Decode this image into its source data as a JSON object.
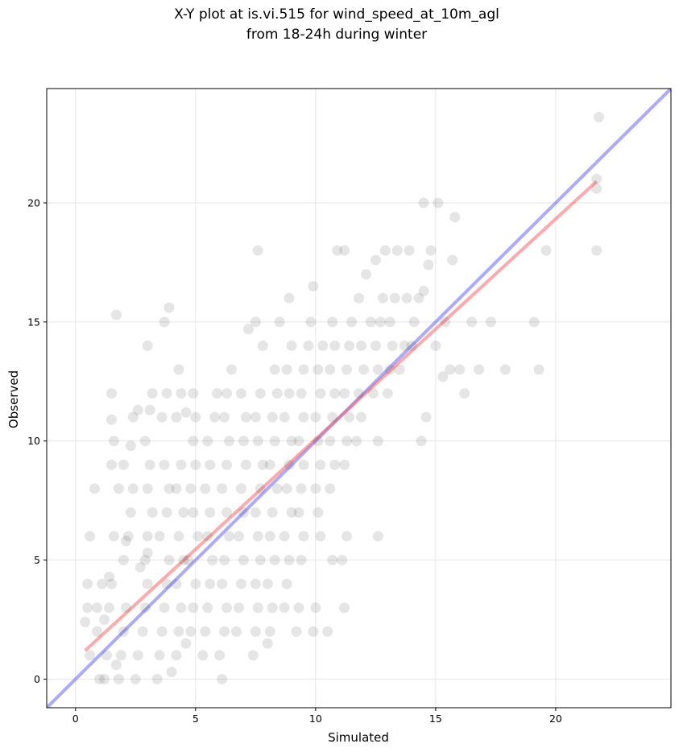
{
  "chart_data": {
    "type": "scatter",
    "title_line1": "X-Y plot at is.vi.515 for wind_speed_at_10m_agl",
    "title_line2": "from 18-24h during winter",
    "xlabel": "Simulated",
    "ylabel": "Observed",
    "xlim": [
      -1.2,
      24.8
    ],
    "ylim": [
      -1.2,
      24.8
    ],
    "xticks": [
      0,
      5,
      10,
      15,
      20
    ],
    "yticks": [
      0,
      5,
      10,
      15,
      20
    ],
    "grid": true,
    "colors": {
      "points": "#333333",
      "one_to_one": "#5555ff",
      "fit": "#ff5555"
    },
    "one_to_one_line": [
      [
        -1.2,
        -1.2
      ],
      [
        24.8,
        24.8
      ]
    ],
    "fit_line": [
      [
        0.4,
        1.2
      ],
      [
        21.7,
        20.9
      ]
    ],
    "points": [
      [
        0.4,
        2.4
      ],
      [
        0.5,
        3
      ],
      [
        0.6,
        6
      ],
      [
        0.5,
        4
      ],
      [
        0.6,
        1
      ],
      [
        0.8,
        8
      ],
      [
        0.9,
        2
      ],
      [
        1,
        0
      ],
      [
        1.2,
        0
      ],
      [
        1.3,
        1
      ],
      [
        0.9,
        3
      ],
      [
        1.1,
        4
      ],
      [
        1.2,
        2.5
      ],
      [
        1.4,
        3
      ],
      [
        1.5,
        4
      ],
      [
        1.6,
        6
      ],
      [
        1.4,
        4.3
      ],
      [
        1.5,
        9
      ],
      [
        1.6,
        10
      ],
      [
        1.5,
        10.9
      ],
      [
        1.5,
        12
      ],
      [
        1.7,
        0.6
      ],
      [
        1.8,
        0
      ],
      [
        1.9,
        1
      ],
      [
        2,
        2
      ],
      [
        2.1,
        3
      ],
      [
        1.8,
        8
      ],
      [
        1.7,
        15.3
      ],
      [
        2,
        9
      ],
      [
        2,
        5
      ],
      [
        2.1,
        5.8
      ],
      [
        2.2,
        6
      ],
      [
        2.3,
        7
      ],
      [
        2.4,
        8
      ],
      [
        2.3,
        9.8
      ],
      [
        2.4,
        11
      ],
      [
        2.6,
        11.3
      ],
      [
        2.5,
        0
      ],
      [
        2.6,
        1
      ],
      [
        2.8,
        2
      ],
      [
        2.9,
        3
      ],
      [
        3,
        4
      ],
      [
        2.7,
        4.7
      ],
      [
        2.9,
        5
      ],
      [
        3,
        5.3
      ],
      [
        3,
        6
      ],
      [
        3.2,
        7
      ],
      [
        3,
        8
      ],
      [
        3.1,
        9
      ],
      [
        2.9,
        10
      ],
      [
        3.1,
        11.3
      ],
      [
        3,
        14
      ],
      [
        3.2,
        12
      ],
      [
        3.4,
        0
      ],
      [
        3.5,
        1
      ],
      [
        3.6,
        2
      ],
      [
        3.7,
        3
      ],
      [
        3.8,
        4
      ],
      [
        3.9,
        5
      ],
      [
        3.5,
        6
      ],
      [
        3.8,
        7
      ],
      [
        3.9,
        8
      ],
      [
        3.7,
        9
      ],
      [
        3.6,
        11
      ],
      [
        3.8,
        12
      ],
      [
        3.9,
        15.6
      ],
      [
        3.7,
        15
      ],
      [
        4,
        0.3
      ],
      [
        4.2,
        1
      ],
      [
        4.3,
        2
      ],
      [
        4.4,
        3
      ],
      [
        4.2,
        4
      ],
      [
        4.5,
        5
      ],
      [
        4.3,
        6
      ],
      [
        4.5,
        7
      ],
      [
        4.2,
        8
      ],
      [
        4.4,
        9
      ],
      [
        4.2,
        11
      ],
      [
        4.4,
        12
      ],
      [
        4.3,
        13
      ],
      [
        4.6,
        1.5
      ],
      [
        4.8,
        2
      ],
      [
        4.9,
        3
      ],
      [
        5,
        4
      ],
      [
        4.7,
        5
      ],
      [
        5.1,
        6
      ],
      [
        4.9,
        7
      ],
      [
        4.8,
        8
      ],
      [
        5,
        9
      ],
      [
        4.9,
        10
      ],
      [
        5,
        11
      ],
      [
        4.9,
        12
      ],
      [
        4.6,
        11.2
      ],
      [
        5.3,
        1
      ],
      [
        5.4,
        2
      ],
      [
        5.5,
        3
      ],
      [
        5.6,
        4
      ],
      [
        5.7,
        5
      ],
      [
        5.5,
        6
      ],
      [
        5.6,
        7
      ],
      [
        5.4,
        8
      ],
      [
        5.6,
        9
      ],
      [
        5.5,
        10
      ],
      [
        5.8,
        11
      ],
      [
        5.9,
        12
      ],
      [
        6.1,
        0
      ],
      [
        6,
        1
      ],
      [
        6.2,
        2
      ],
      [
        6.3,
        3
      ],
      [
        6.1,
        4
      ],
      [
        6.2,
        5
      ],
      [
        6.4,
        6
      ],
      [
        6.3,
        7
      ],
      [
        6.1,
        8
      ],
      [
        6.3,
        9
      ],
      [
        6.4,
        10
      ],
      [
        6.2,
        11
      ],
      [
        6.3,
        12
      ],
      [
        6.5,
        13
      ],
      [
        6.7,
        2
      ],
      [
        6.8,
        3
      ],
      [
        6.9,
        4
      ],
      [
        7,
        5
      ],
      [
        6.8,
        6
      ],
      [
        7,
        7
      ],
      [
        6.9,
        8
      ],
      [
        7.1,
        9
      ],
      [
        7,
        10
      ],
      [
        7.1,
        11
      ],
      [
        6.9,
        12
      ],
      [
        7.2,
        14.7
      ],
      [
        7.4,
        1
      ],
      [
        7.5,
        2
      ],
      [
        7.6,
        3
      ],
      [
        7.5,
        4
      ],
      [
        7.7,
        5
      ],
      [
        7.6,
        6
      ],
      [
        7.5,
        7
      ],
      [
        7.7,
        8
      ],
      [
        7.8,
        9
      ],
      [
        7.6,
        10
      ],
      [
        7.5,
        11
      ],
      [
        7.7,
        12
      ],
      [
        7.5,
        15
      ],
      [
        7.6,
        18
      ],
      [
        7.8,
        14
      ],
      [
        8,
        1.5
      ],
      [
        8.1,
        2
      ],
      [
        8.2,
        3
      ],
      [
        8,
        4
      ],
      [
        8.3,
        5
      ],
      [
        8.1,
        6
      ],
      [
        8.2,
        7
      ],
      [
        8.4,
        8
      ],
      [
        8.1,
        9
      ],
      [
        8.3,
        10
      ],
      [
        8.2,
        11
      ],
      [
        8.4,
        12
      ],
      [
        8.3,
        13
      ],
      [
        8.5,
        15
      ],
      [
        8.7,
        3
      ],
      [
        8.8,
        4
      ],
      [
        8.9,
        5
      ],
      [
        8.7,
        6
      ],
      [
        9,
        7
      ],
      [
        8.8,
        8
      ],
      [
        8.9,
        9
      ],
      [
        9,
        10
      ],
      [
        8.7,
        11
      ],
      [
        8.9,
        12
      ],
      [
        8.8,
        13
      ],
      [
        9,
        14
      ],
      [
        8.9,
        16
      ],
      [
        9.2,
        2
      ],
      [
        9.3,
        3
      ],
      [
        9.4,
        5
      ],
      [
        9.5,
        6
      ],
      [
        9.3,
        7
      ],
      [
        9.4,
        8
      ],
      [
        9.5,
        9
      ],
      [
        9.3,
        10
      ],
      [
        9.5,
        11
      ],
      [
        9.4,
        12
      ],
      [
        9.5,
        13
      ],
      [
        9.7,
        14
      ],
      [
        9.8,
        15
      ],
      [
        9.9,
        2
      ],
      [
        10,
        3
      ],
      [
        10.2,
        6
      ],
      [
        10.1,
        7
      ],
      [
        10,
        8
      ],
      [
        10.2,
        9
      ],
      [
        10.1,
        10
      ],
      [
        10,
        11
      ],
      [
        10.2,
        12
      ],
      [
        10.1,
        13
      ],
      [
        10.3,
        14
      ],
      [
        9.9,
        16.5
      ],
      [
        10.5,
        2
      ],
      [
        10.7,
        5
      ],
      [
        10.6,
        8
      ],
      [
        10.8,
        9
      ],
      [
        10.6,
        10
      ],
      [
        10.7,
        11
      ],
      [
        10.8,
        12
      ],
      [
        10.6,
        13
      ],
      [
        10.8,
        14
      ],
      [
        10.7,
        15
      ],
      [
        10.9,
        18
      ],
      [
        11.2,
        3
      ],
      [
        11.1,
        5
      ],
      [
        11.3,
        6
      ],
      [
        11.2,
        9
      ],
      [
        11.3,
        10
      ],
      [
        11.4,
        11
      ],
      [
        11.2,
        12
      ],
      [
        11.3,
        13
      ],
      [
        11.4,
        14
      ],
      [
        11.5,
        15
      ],
      [
        11.2,
        18
      ],
      [
        11.7,
        10
      ],
      [
        11.9,
        11
      ],
      [
        11.8,
        12
      ],
      [
        12,
        13
      ],
      [
        11.9,
        14
      ],
      [
        11.8,
        16
      ],
      [
        12.1,
        17
      ],
      [
        12.3,
        15
      ],
      [
        12.5,
        17.6
      ],
      [
        12.6,
        6
      ],
      [
        12.4,
        12
      ],
      [
        12.6,
        13
      ],
      [
        12.5,
        14
      ],
      [
        12.7,
        15
      ],
      [
        12.8,
        16
      ],
      [
        12.6,
        10
      ],
      [
        12.9,
        18
      ],
      [
        13,
        12
      ],
      [
        13.1,
        13
      ],
      [
        13.2,
        14
      ],
      [
        13.3,
        16
      ],
      [
        13.1,
        15
      ],
      [
        13.4,
        18
      ],
      [
        13.5,
        13
      ],
      [
        13.7,
        14
      ],
      [
        13.8,
        16
      ],
      [
        13.9,
        18
      ],
      [
        14,
        14
      ],
      [
        14.1,
        15
      ],
      [
        14.3,
        16
      ],
      [
        14.5,
        16.3
      ],
      [
        14.4,
        10
      ],
      [
        14.6,
        11
      ],
      [
        14.5,
        20
      ],
      [
        14.7,
        17.4
      ],
      [
        14.8,
        18
      ],
      [
        15,
        14
      ],
      [
        15.1,
        20
      ],
      [
        15.3,
        12.7
      ],
      [
        15.4,
        15
      ],
      [
        15.6,
        13
      ],
      [
        15.7,
        17.6
      ],
      [
        15.8,
        19.4
      ],
      [
        16,
        13
      ],
      [
        16.2,
        12
      ],
      [
        16.5,
        15
      ],
      [
        16.8,
        13
      ],
      [
        17.3,
        15
      ],
      [
        17.9,
        13
      ],
      [
        19.1,
        15
      ],
      [
        19.3,
        13
      ],
      [
        19.6,
        18
      ],
      [
        21.7,
        18
      ],
      [
        21.7,
        20.6
      ],
      [
        21.7,
        21
      ],
      [
        21.8,
        23.6
      ]
    ]
  }
}
